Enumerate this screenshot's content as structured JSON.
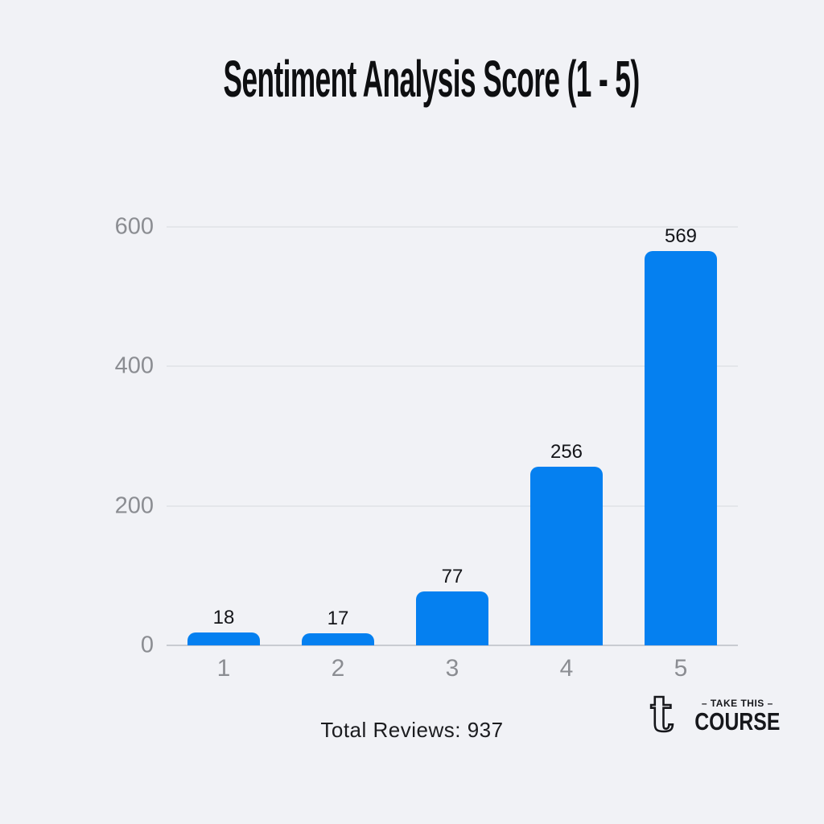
{
  "page": {
    "background_color": "#f1f2f6",
    "title": "Sentiment Analysis Score (1 - 5)",
    "total_reviews_label": "Total Reviews: 937"
  },
  "chart_data": {
    "type": "bar",
    "title": "Sentiment Analysis Score (1 - 5)",
    "categories": [
      "1",
      "2",
      "3",
      "4",
      "5"
    ],
    "values": [
      18,
      17,
      77,
      256,
      569
    ],
    "value_labels": [
      "18",
      "17",
      "77",
      "256",
      "569"
    ],
    "total_reviews": 937,
    "xlabel": "",
    "ylabel": "",
    "ylim": [
      0,
      600
    ],
    "yticks": [
      0,
      200,
      400,
      600
    ],
    "grid": "horizontal",
    "legend": "none",
    "bar_color": "#0580f0",
    "annotation": "Total Reviews: 937"
  },
  "colors": {
    "background": "#f1f2f6",
    "bar": "#0580f0",
    "gridline": "#e4e6ea",
    "axis_line": "#c9cbd1",
    "tick_label": "#8b8d92",
    "value_label": "#141519",
    "title": "#0e0f11",
    "logo": "#16171b"
  },
  "logo": {
    "glyph": "t",
    "line1": "– TAKE THIS –",
    "line2": "COURSE"
  }
}
